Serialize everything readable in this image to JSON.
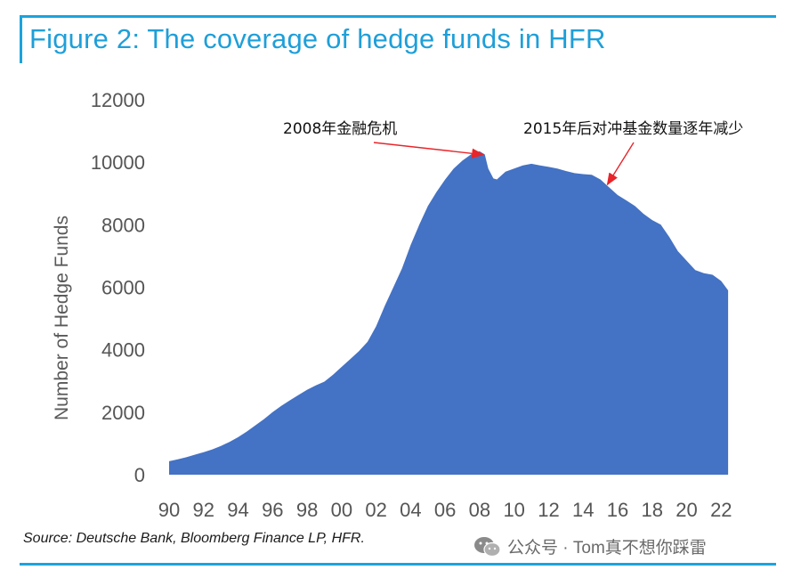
{
  "title": "Figure 2: The coverage of hedge funds in HFR",
  "source": "Source: Deutsche Bank, Bloomberg Finance LP, HFR.",
  "watermark": "公众号 · Tom真不想你踩雷",
  "colors": {
    "accent": "#1aa3dd",
    "area": "#4472c4",
    "arrow": "#e8252a"
  },
  "chart_data": {
    "type": "area",
    "ylabel": "Number of Hedge Funds",
    "xlabel": "",
    "ylim": [
      0,
      12000
    ],
    "xlim": [
      1990,
      2022.5
    ],
    "grid": false,
    "y_ticks": [
      "0",
      "2000",
      "4000",
      "6000",
      "8000",
      "10000",
      "12000"
    ],
    "x_ticks": [
      "90",
      "92",
      "94",
      "96",
      "98",
      "00",
      "02",
      "04",
      "06",
      "08",
      "10",
      "12",
      "14",
      "16",
      "18",
      "20",
      "22"
    ],
    "series": [
      {
        "x": [
          1990,
          1990.5,
          1991,
          1991.5,
          1992,
          1992.5,
          1993,
          1993.5,
          1994,
          1994.5,
          1995,
          1995.5,
          1996,
          1996.5,
          1997,
          1997.5,
          1998,
          1998.5,
          1999,
          1999.5,
          2000,
          2000.5,
          2001,
          2001.5,
          2002,
          2002.5,
          2003,
          2003.5,
          2004,
          2004.5,
          2005,
          2005.5,
          2006,
          2006.5,
          2007,
          2007.5,
          2008,
          2008.3,
          2008.5,
          2008.8,
          2009,
          2009.3,
          2009.5,
          2010,
          2010.5,
          2011,
          2011.5,
          2012,
          2012.5,
          2013,
          2013.5,
          2014,
          2014.5,
          2015,
          2015.5,
          2016,
          2016.5,
          2017,
          2017.5,
          2018,
          2018.5,
          2019,
          2019.5,
          2020,
          2020.5,
          2021,
          2021.5,
          2022,
          2022.4
        ],
        "values": [
          430,
          490,
          560,
          640,
          720,
          810,
          920,
          1050,
          1200,
          1380,
          1580,
          1780,
          2000,
          2200,
          2380,
          2550,
          2720,
          2860,
          2980,
          3200,
          3450,
          3700,
          3950,
          4250,
          4750,
          5400,
          6000,
          6600,
          7350,
          8000,
          8600,
          9050,
          9450,
          9800,
          10050,
          10250,
          10350,
          10250,
          9800,
          9480,
          9450,
          9600,
          9700,
          9800,
          9900,
          9950,
          9900,
          9850,
          9800,
          9720,
          9650,
          9620,
          9600,
          9450,
          9200,
          8950,
          8780,
          8600,
          8350,
          8150,
          8000,
          7600,
          7150,
          6850,
          6550,
          6450,
          6400,
          6200,
          5900
        ]
      }
    ],
    "annotations": [
      {
        "text": "2008年金融危机",
        "x": 2008.2,
        "y": 10300
      },
      {
        "text": "2015年后对冲基金数量逐年减少",
        "x": 2015.2,
        "y": 9400
      }
    ]
  }
}
